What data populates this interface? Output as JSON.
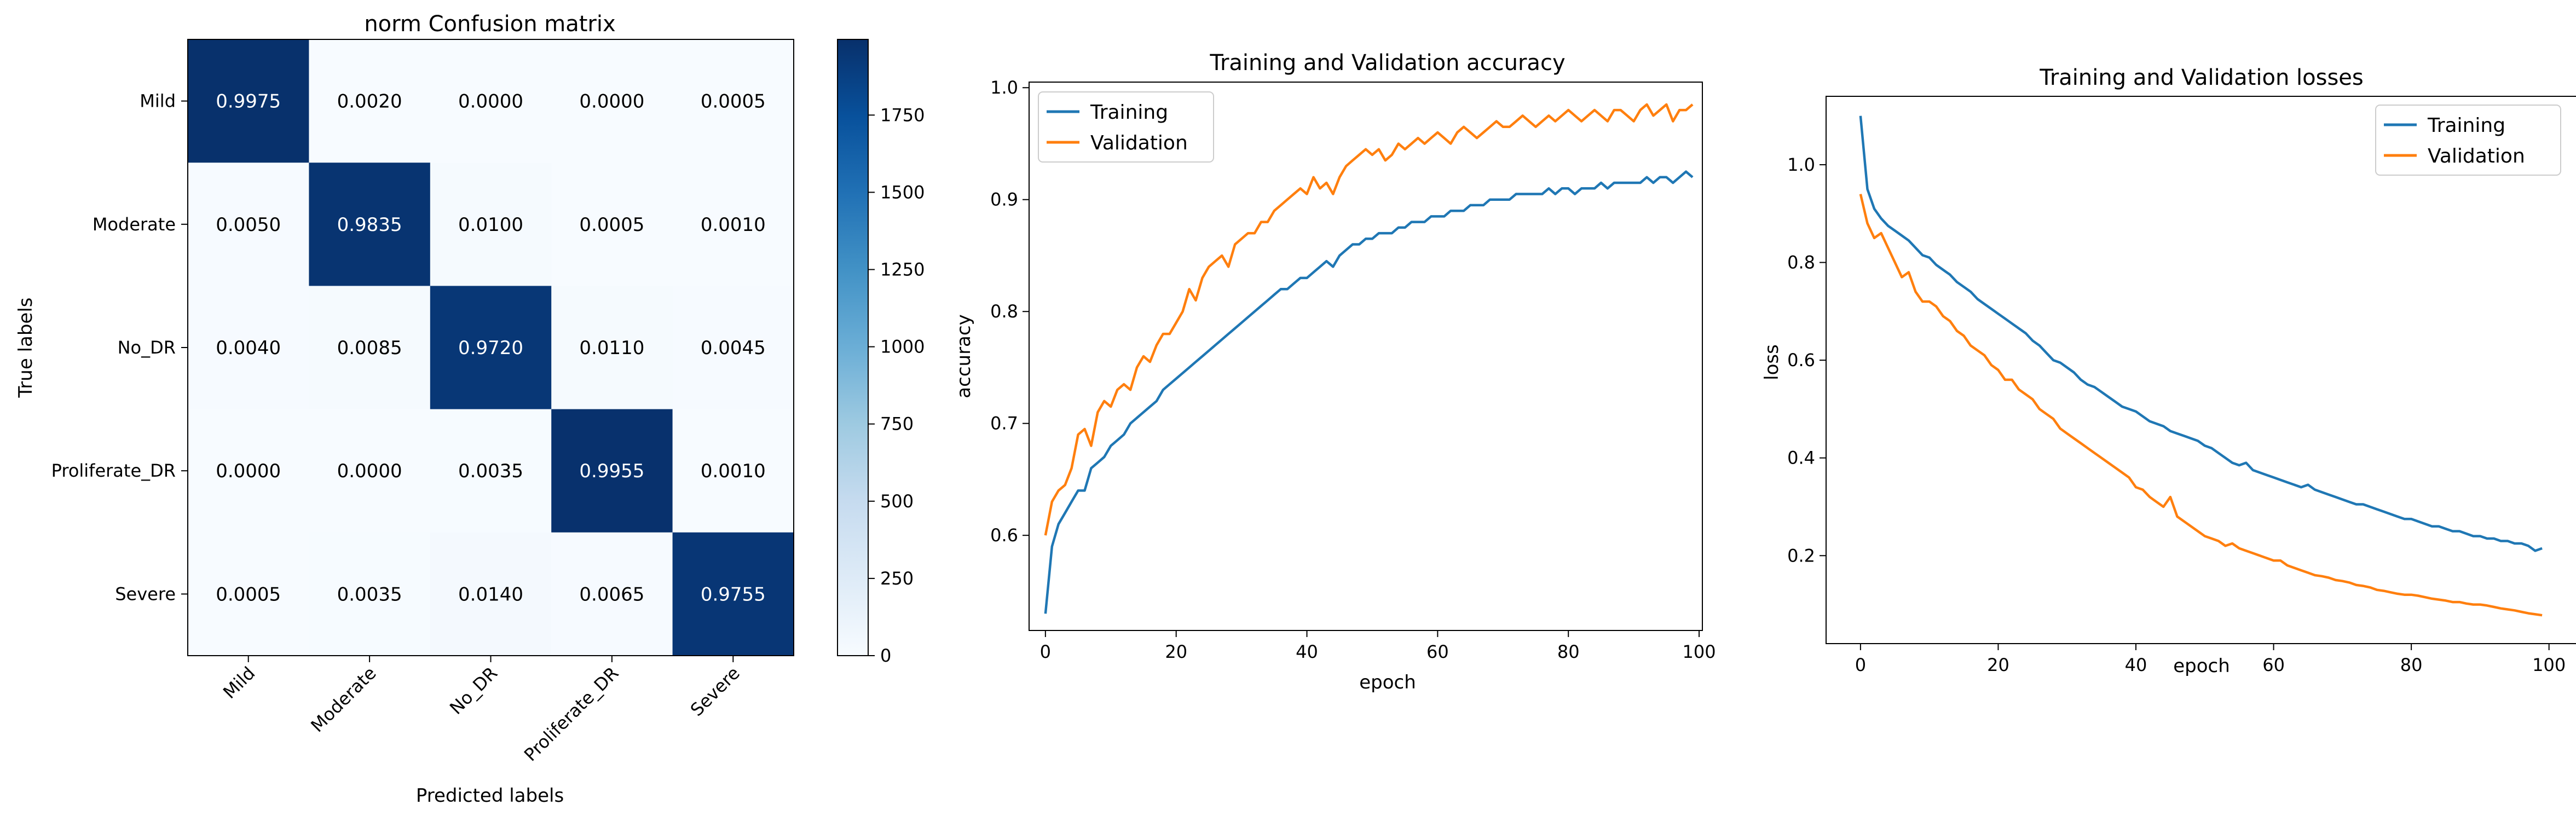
{
  "chart_data": [
    {
      "type": "heatmap",
      "title": "norm Confusion matrix",
      "xlabel": "Predicted labels",
      "ylabel": "True labels",
      "labels": [
        "Mild",
        "Moderate",
        "No_DR",
        "Proliferate_DR",
        "Severe"
      ],
      "values": [
        [
          "0.9975",
          "0.0020",
          "0.0000",
          "0.0000",
          "0.0005"
        ],
        [
          "0.0050",
          "0.9835",
          "0.0100",
          "0.0005",
          "0.0010"
        ],
        [
          "0.0040",
          "0.0085",
          "0.9720",
          "0.0110",
          "0.0045"
        ],
        [
          "0.0000",
          "0.0000",
          "0.0035",
          "0.9955",
          "0.0010"
        ],
        [
          "0.0005",
          "0.0035",
          "0.0140",
          "0.0065",
          "0.9755"
        ]
      ],
      "colorbar": {
        "range": [
          0,
          1995
        ],
        "ticks": [
          "0",
          "250",
          "500",
          "750",
          "1000",
          "1250",
          "1500",
          "1750"
        ],
        "colors": [
          "#f7fbff",
          "#deebf7",
          "#c6dbef",
          "#9ecae1",
          "#6baed6",
          "#4292c6",
          "#2171b5",
          "#08519c",
          "#08306b"
        ]
      }
    },
    {
      "type": "line",
      "title": "Training and Validation accuracy",
      "xlabel": "epoch",
      "ylabel": "accuracy",
      "xlim": [
        -2.5,
        100.5
      ],
      "ylim": [
        0.515,
        1.005
      ],
      "xticks": [
        "0",
        "20",
        "40",
        "60",
        "80",
        "100"
      ],
      "yticks": [
        "0.6",
        "0.7",
        "0.8",
        "0.9",
        "1.0"
      ],
      "legend": "top-left",
      "series": [
        {
          "name": "Training",
          "color": "#1f77b4",
          "values": [
            0.53,
            0.59,
            0.61,
            0.62,
            0.63,
            0.64,
            0.64,
            0.66,
            0.665,
            0.67,
            0.68,
            0.685,
            0.69,
            0.7,
            0.705,
            0.71,
            0.715,
            0.72,
            0.73,
            0.735,
            0.74,
            0.745,
            0.75,
            0.755,
            0.76,
            0.765,
            0.77,
            0.775,
            0.78,
            0.785,
            0.79,
            0.795,
            0.8,
            0.805,
            0.81,
            0.815,
            0.82,
            0.82,
            0.825,
            0.83,
            0.83,
            0.835,
            0.84,
            0.845,
            0.84,
            0.85,
            0.855,
            0.86,
            0.86,
            0.865,
            0.865,
            0.87,
            0.87,
            0.87,
            0.875,
            0.875,
            0.88,
            0.88,
            0.88,
            0.885,
            0.885,
            0.885,
            0.89,
            0.89,
            0.89,
            0.895,
            0.895,
            0.895,
            0.9,
            0.9,
            0.9,
            0.9,
            0.905,
            0.905,
            0.905,
            0.905,
            0.905,
            0.91,
            0.905,
            0.91,
            0.91,
            0.905,
            0.91,
            0.91,
            0.91,
            0.915,
            0.91,
            0.915,
            0.915,
            0.915,
            0.915,
            0.915,
            0.92,
            0.915,
            0.92,
            0.92,
            0.915,
            0.92,
            0.925,
            0.92
          ]
        },
        {
          "name": "Validation",
          "color": "#ff7f0e",
          "values": [
            0.6,
            0.63,
            0.64,
            0.645,
            0.66,
            0.69,
            0.695,
            0.68,
            0.71,
            0.72,
            0.715,
            0.73,
            0.735,
            0.73,
            0.75,
            0.76,
            0.755,
            0.77,
            0.78,
            0.78,
            0.79,
            0.8,
            0.82,
            0.81,
            0.83,
            0.84,
            0.845,
            0.85,
            0.84,
            0.86,
            0.865,
            0.87,
            0.87,
            0.88,
            0.88,
            0.89,
            0.895,
            0.9,
            0.905,
            0.91,
            0.905,
            0.92,
            0.91,
            0.915,
            0.905,
            0.92,
            0.93,
            0.935,
            0.94,
            0.945,
            0.94,
            0.945,
            0.935,
            0.94,
            0.95,
            0.945,
            0.95,
            0.955,
            0.95,
            0.955,
            0.96,
            0.955,
            0.95,
            0.96,
            0.965,
            0.96,
            0.955,
            0.96,
            0.965,
            0.97,
            0.965,
            0.965,
            0.97,
            0.975,
            0.97,
            0.965,
            0.97,
            0.975,
            0.97,
            0.975,
            0.98,
            0.975,
            0.97,
            0.975,
            0.98,
            0.975,
            0.97,
            0.98,
            0.98,
            0.975,
            0.97,
            0.98,
            0.985,
            0.975,
            0.98,
            0.985,
            0.97,
            0.98,
            0.98,
            0.985
          ]
        }
      ]
    },
    {
      "type": "line",
      "title": "Training and Validation losses",
      "xlabel": "epoch",
      "ylabel": "loss",
      "xlim": [
        -5,
        104
      ],
      "ylim": [
        0.02,
        1.14
      ],
      "xticks": [
        "0",
        "20",
        "40",
        "60",
        "80",
        "100"
      ],
      "yticks": [
        "0.2",
        "0.4",
        "0.6",
        "0.8",
        "1.0"
      ],
      "legend": "top-right",
      "series": [
        {
          "name": "Training",
          "color": "#1f77b4",
          "values": [
            1.1,
            0.95,
            0.91,
            0.89,
            0.875,
            0.865,
            0.855,
            0.845,
            0.83,
            0.815,
            0.81,
            0.795,
            0.785,
            0.775,
            0.76,
            0.75,
            0.74,
            0.725,
            0.715,
            0.705,
            0.695,
            0.685,
            0.675,
            0.665,
            0.655,
            0.64,
            0.63,
            0.615,
            0.6,
            0.595,
            0.585,
            0.575,
            0.56,
            0.55,
            0.545,
            0.535,
            0.525,
            0.515,
            0.505,
            0.5,
            0.495,
            0.485,
            0.475,
            0.47,
            0.465,
            0.455,
            0.45,
            0.445,
            0.44,
            0.435,
            0.425,
            0.42,
            0.41,
            0.4,
            0.39,
            0.385,
            0.39,
            0.375,
            0.37,
            0.365,
            0.36,
            0.355,
            0.35,
            0.345,
            0.34,
            0.345,
            0.335,
            0.33,
            0.325,
            0.32,
            0.315,
            0.31,
            0.305,
            0.305,
            0.3,
            0.295,
            0.29,
            0.285,
            0.28,
            0.275,
            0.275,
            0.27,
            0.265,
            0.26,
            0.26,
            0.255,
            0.25,
            0.25,
            0.245,
            0.24,
            0.24,
            0.235,
            0.235,
            0.23,
            0.23,
            0.225,
            0.225,
            0.22,
            0.21,
            0.215
          ]
        },
        {
          "name": "Validation",
          "color": "#ff7f0e",
          "values": [
            0.94,
            0.88,
            0.85,
            0.86,
            0.83,
            0.8,
            0.77,
            0.78,
            0.74,
            0.72,
            0.72,
            0.71,
            0.69,
            0.68,
            0.66,
            0.65,
            0.63,
            0.62,
            0.61,
            0.59,
            0.58,
            0.56,
            0.56,
            0.54,
            0.53,
            0.52,
            0.5,
            0.49,
            0.48,
            0.46,
            0.45,
            0.44,
            0.43,
            0.42,
            0.41,
            0.4,
            0.39,
            0.38,
            0.37,
            0.36,
            0.34,
            0.335,
            0.32,
            0.31,
            0.3,
            0.32,
            0.28,
            0.27,
            0.26,
            0.25,
            0.24,
            0.235,
            0.23,
            0.22,
            0.225,
            0.215,
            0.21,
            0.205,
            0.2,
            0.195,
            0.19,
            0.19,
            0.18,
            0.175,
            0.17,
            0.165,
            0.16,
            0.158,
            0.155,
            0.15,
            0.148,
            0.145,
            0.14,
            0.138,
            0.135,
            0.13,
            0.128,
            0.125,
            0.122,
            0.12,
            0.12,
            0.118,
            0.115,
            0.112,
            0.11,
            0.108,
            0.105,
            0.105,
            0.102,
            0.1,
            0.1,
            0.098,
            0.095,
            0.092,
            0.09,
            0.088,
            0.085,
            0.082,
            0.08,
            0.078
          ]
        }
      ]
    }
  ]
}
